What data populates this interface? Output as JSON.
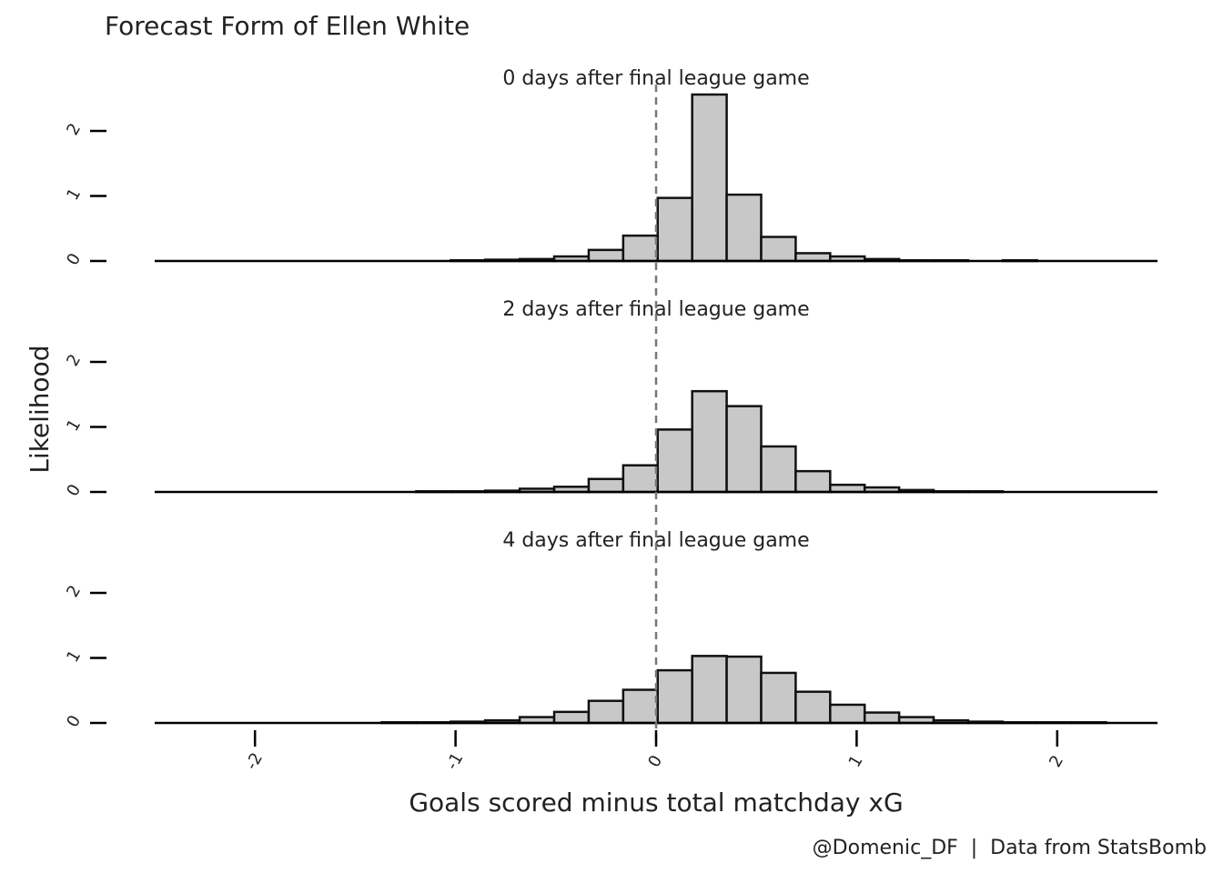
{
  "chart_data": {
    "type": "bar",
    "title": "Forecast Form of Ellen White",
    "xlabel": "Goals scored minus total matchday xG",
    "ylabel": "Likelihood",
    "caption": "@Domenic_DF  |  Data from StatsBomb",
    "xlim": [
      -2.5,
      2.5
    ],
    "ylim": [
      0,
      2.5
    ],
    "x_ticks": [
      -2,
      -1,
      0,
      1,
      2
    ],
    "y_ticks": [
      0,
      1,
      2
    ],
    "reference_line_x": 0,
    "bin_width": 0.172,
    "bin_starts": [
      -2.4,
      -2.228,
      -2.056,
      -1.884,
      -1.712,
      -1.54,
      -1.368,
      -1.196,
      -1.024,
      -0.852,
      -0.68,
      -0.508,
      -0.336,
      -0.164,
      0.008,
      0.18,
      0.352,
      0.524,
      0.696,
      0.868,
      1.04,
      1.212,
      1.384,
      1.556,
      1.728,
      1.9,
      2.072,
      2.244
    ],
    "panels": [
      {
        "label": "0 days after final league game",
        "values": [
          0,
          0,
          0,
          0,
          0,
          0,
          0,
          0,
          0.01,
          0.02,
          0.03,
          0.07,
          0.17,
          0.39,
          0.97,
          2.56,
          1.02,
          0.37,
          0.12,
          0.07,
          0.03,
          0.01,
          0.01,
          0,
          0.01,
          0,
          0,
          0
        ]
      },
      {
        "label": "2 days after final league game",
        "values": [
          0,
          0,
          0,
          0,
          0,
          0,
          0,
          0.01,
          0.01,
          0.02,
          0.05,
          0.08,
          0.2,
          0.41,
          0.96,
          1.55,
          1.32,
          0.7,
          0.32,
          0.11,
          0.07,
          0.03,
          0.01,
          0.01,
          0,
          0,
          0,
          0
        ]
      },
      {
        "label": "4 days after final league game",
        "values": [
          0,
          0,
          0,
          0,
          0,
          0,
          0.01,
          0.01,
          0.02,
          0.04,
          0.09,
          0.17,
          0.34,
          0.51,
          0.81,
          1.03,
          1.02,
          0.77,
          0.48,
          0.28,
          0.16,
          0.09,
          0.04,
          0.02,
          0.01,
          0.01,
          0.01,
          0
        ]
      }
    ]
  }
}
